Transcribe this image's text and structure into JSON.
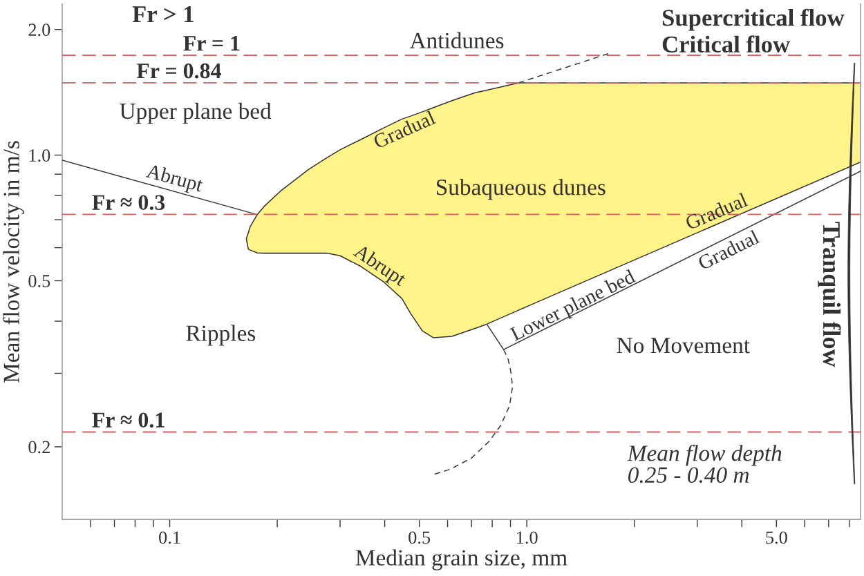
{
  "chart_data": {
    "type": "line",
    "log": "xy",
    "xlabel": "Median grain size, mm",
    "ylabel": "Mean flow velocity in m/s",
    "xlim": [
      0.05,
      8.6
    ],
    "ylim": [
      0.134,
      2.3
    ],
    "xticks": [
      {
        "value": 0.06,
        "label": null
      },
      {
        "value": 0.07,
        "label": null
      },
      {
        "value": 0.08,
        "label": null
      },
      {
        "value": 0.09,
        "label": null
      },
      {
        "value": 0.1,
        "label": "0.1"
      },
      {
        "value": 0.2,
        "label": null
      },
      {
        "value": 0.3,
        "label": null
      },
      {
        "value": 0.4,
        "label": null
      },
      {
        "value": 0.5,
        "label": "0.5"
      },
      {
        "value": 0.6,
        "label": null
      },
      {
        "value": 0.7,
        "label": null
      },
      {
        "value": 0.8,
        "label": null
      },
      {
        "value": 0.9,
        "label": null
      },
      {
        "value": 1,
        "label": "1.0"
      },
      {
        "value": 2,
        "label": null
      },
      {
        "value": 3,
        "label": null
      },
      {
        "value": 4,
        "label": null
      },
      {
        "value": 5,
        "label": "5.0"
      },
      {
        "value": 6,
        "label": null
      },
      {
        "value": 7,
        "label": null
      },
      {
        "value": 8,
        "label": null
      }
    ],
    "yticks": [
      {
        "value": 0.2,
        "label": "0.2"
      },
      {
        "value": 0.3,
        "label": null
      },
      {
        "value": 0.4,
        "label": null
      },
      {
        "value": 0.5,
        "label": "0.5"
      },
      {
        "value": 0.6,
        "label": null
      },
      {
        "value": 0.7,
        "label": null
      },
      {
        "value": 0.8,
        "label": null
      },
      {
        "value": 0.9,
        "label": null
      },
      {
        "value": 1,
        "label": "1.0"
      },
      {
        "value": 2,
        "label": "2.0"
      }
    ],
    "series": [
      {
        "color": "#fff38a",
        "x": [
          0.164,
          0.166,
          0.168,
          0.176,
          0.184,
          0.204,
          0.244,
          0.275,
          0.3,
          0.343,
          0.396,
          0.447,
          0.473,
          0.51,
          0.548,
          0.617,
          0.714,
          0.77,
          0.948,
          1.2,
          8.6
        ],
        "values": [
          null,
          null,
          null,
          null,
          null,
          null,
          null,
          null,
          null,
          null,
          null,
          null,
          null,
          null,
          null,
          null,
          null,
          null,
          null,
          null,
          null
        ],
        "upper": [
          0.632,
          0.651,
          0.674,
          0.721,
          0.754,
          0.819,
          0.922,
          0.985,
          1.03,
          1.09,
          1.16,
          1.22,
          1.24,
          1.27,
          1.3,
          1.35,
          1.41,
          1.43,
          1.49,
          1.49,
          1.49
        ],
        "lower": [
          0.628,
          0.595,
          0.592,
          0.583,
          0.582,
          0.582,
          0.582,
          0.582,
          0.574,
          0.541,
          0.498,
          0.453,
          0.417,
          0.379,
          0.365,
          0.368,
          0.384,
          0.393,
          0.425,
          0.464,
          0.962
        ]
      },
      {
        "color": "#3a3a3a",
        "line_style": "solid",
        "x": [
          0.05,
          0.175
        ],
        "values": [
          0.972,
          0.721
        ]
      },
      {
        "color": "#3a3a3a",
        "line_style": "dashed",
        "x": [
          0.948,
          1.69
        ],
        "values": [
          1.49,
          1.75
        ]
      },
      {
        "color": "#3a3a3a",
        "line_style": "solid",
        "x": [
          0.776,
          0.861,
          8.6
        ],
        "values": [
          0.391,
          0.342,
          0.915
        ]
      },
      {
        "color": "#3a3a3a",
        "line_style": "dashed",
        "x": [
          0.861,
          0.886,
          0.903,
          0.912,
          0.895,
          0.845,
          0.784,
          0.7,
          0.613,
          0.552
        ],
        "values": [
          0.342,
          0.325,
          0.301,
          0.279,
          0.251,
          0.225,
          0.206,
          0.188,
          0.177,
          0.172
        ]
      }
    ],
    "ref_lines": [
      {
        "axis": "y",
        "value": 1.735,
        "color": "#e35d5d",
        "line_style": "dashed"
      },
      {
        "axis": "y",
        "value": 1.49,
        "color": "#e35d5d",
        "line_style": "dashed"
      },
      {
        "axis": "y",
        "value": 0.721,
        "color": "#e35d5d",
        "line_style": "dashed"
      },
      {
        "axis": "y",
        "value": 0.217,
        "color": "#e35d5d",
        "line_style": "dashed"
      }
    ],
    "annotations": [
      "Fr > 1",
      "Supercritical flow",
      "Critical flow",
      "Fr = 1",
      "Fr = 0.84",
      "Fr ≈ 0.3",
      "Fr ≈ 0.1",
      "Antidunes",
      "Upper plane bed",
      "Abrupt",
      "Gradual",
      "Subaqueous dunes",
      "Abrupt",
      "Gradual",
      "Lower plane bed",
      "Gradual",
      "Ripples",
      "No Movement",
      "Tranquil flow",
      "Mean flow depth\n0.25 - 0.40 m"
    ]
  }
}
